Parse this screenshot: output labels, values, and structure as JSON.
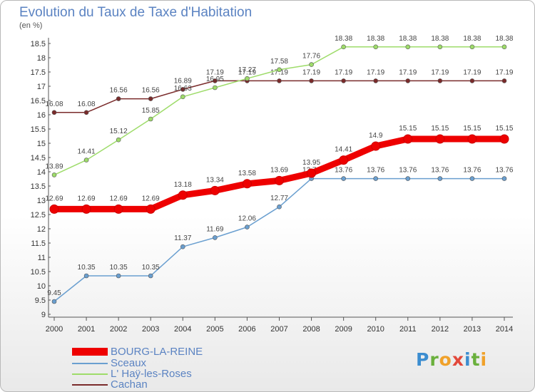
{
  "brand": "Proxiti",
  "chart_data": {
    "type": "line",
    "title": "Evolution du Taux de Taxe d'Habitation",
    "ylabel": "(en %)",
    "xlabel": "",
    "ylim": [
      9,
      18.5
    ],
    "yticks": [
      "9",
      "9.5",
      "10",
      "10.5",
      "11",
      "11.5",
      "12",
      "12.5",
      "13",
      "13.5",
      "14",
      "14.5",
      "15",
      "15.5",
      "16",
      "16.5",
      "17",
      "17.5",
      "18",
      "18.5"
    ],
    "categories": [
      "2000",
      "2001",
      "2002",
      "2003",
      "2004",
      "2005",
      "2006",
      "2007",
      "2008",
      "2009",
      "2010",
      "2011",
      "2012",
      "2013",
      "2014"
    ],
    "grid": false,
    "legend_position": "bottom-left",
    "series": [
      {
        "name": "BOURG-LA-REINE",
        "color": "#ee0000",
        "values": [
          12.69,
          12.69,
          12.69,
          12.69,
          13.18,
          13.34,
          13.58,
          13.69,
          13.95,
          14.41,
          14.9,
          15.15,
          15.15,
          15.15,
          15.15
        ],
        "labels": [
          "12.69",
          "12.69",
          "12.69",
          "12.69",
          "13.18",
          "13.34",
          "13.58",
          "13.69",
          "13.95",
          "14.41",
          "14.9",
          "15.15",
          "15.15",
          "15.15",
          "15.15"
        ]
      },
      {
        "name": "Sceaux",
        "color": "#6a9fd0",
        "values": [
          9.45,
          10.35,
          10.35,
          10.35,
          11.37,
          11.69,
          12.06,
          12.77,
          13.76,
          13.76,
          13.76,
          13.76,
          13.76,
          13.76,
          13.76
        ],
        "labels": [
          "9.45",
          "10.35",
          "10.35",
          "10.35",
          "11.37",
          "11.69",
          "12.06",
          "12.77",
          "13.76",
          "13.76",
          "13.76",
          "13.76",
          "13.76",
          "13.76",
          "13.76"
        ]
      },
      {
        "name": "L' Haÿ-les-Roses",
        "color": "#9edc6a",
        "values": [
          13.89,
          14.41,
          15.12,
          15.85,
          16.63,
          16.95,
          17.27,
          17.58,
          17.76,
          18.38,
          18.38,
          18.38,
          18.38,
          18.38,
          18.38
        ],
        "labels": [
          "13.89",
          "14.41",
          "15.12",
          "15.85",
          "16.63",
          "16.95",
          "17.27",
          "17.58",
          "17.76",
          "18.38",
          "18.38",
          "18.38",
          "18.38",
          "18.38",
          "18.38"
        ]
      },
      {
        "name": "Cachan",
        "color": "#7a2b2b",
        "values": [
          16.08,
          16.08,
          16.56,
          16.56,
          16.89,
          17.19,
          17.19,
          17.19,
          17.19,
          17.19,
          17.19,
          17.19,
          17.19,
          17.19,
          17.19
        ],
        "labels": [
          "16.08",
          "16.08",
          "16.56",
          "16.56",
          "16.89",
          "17.19",
          "17.19",
          "17.19",
          "17.19",
          "17.19",
          "17.19",
          "17.19",
          "17.19",
          "17.19",
          "17.19"
        ]
      }
    ]
  }
}
